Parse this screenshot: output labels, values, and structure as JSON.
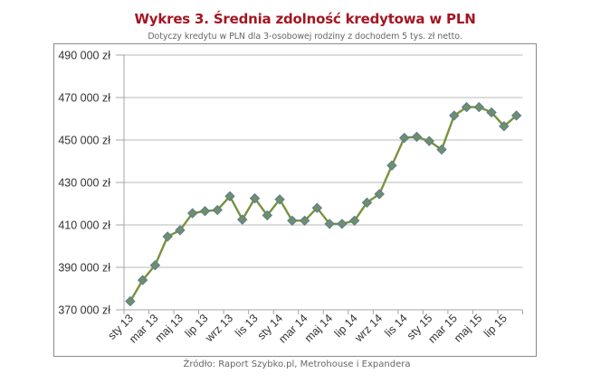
{
  "header": {
    "title": "Wykres 3. Średnia zdolność kredytowa w PLN",
    "subtitle": "Dotyczy kredytu w PLN dla 3-osobowej rodziny z dochodem 5 tys. zł netto."
  },
  "footer": {
    "source": "Źródło: Raport Szybko.pl, Metrohouse i Expandera"
  },
  "colors": {
    "title": "#a31621",
    "line": "#77933c",
    "marker_fill": "#6f8f6a",
    "marker_stroke": "#5b7a93",
    "grid": "#c8c8c8",
    "axis": "#a6a6a6"
  },
  "chart_data": {
    "type": "line",
    "title": "Wykres 3. Średnia zdolność kredytowa w PLN",
    "subtitle": "Dotyczy kredytu w PLN dla 3-osobowej rodziny z dochodem 5 tys. zł netto.",
    "xlabel": "",
    "ylabel": "",
    "ylim": [
      370000,
      490000
    ],
    "y_ticks": [
      370000,
      390000,
      410000,
      430000,
      450000,
      470000,
      490000
    ],
    "y_tick_labels": [
      "370 000 zł",
      "390 000 zł",
      "410 000 zł",
      "430 000 zł",
      "450 000 zł",
      "470 000 zł",
      "490 000 zł"
    ],
    "x_tick_labels": [
      "sty 13",
      "mar 13",
      "maj 13",
      "lip 13",
      "wrz 13",
      "lis 13",
      "sty 14",
      "mar 14",
      "maj 14",
      "lip 14",
      "wrz 14",
      "lis 14",
      "sty 15",
      "mar 15",
      "maj 15",
      "lip 15"
    ],
    "grid": true,
    "legend": "none",
    "categories": [
      "sty 13",
      "lut 13",
      "mar 13",
      "kwi 13",
      "maj 13",
      "cze 13",
      "lip 13",
      "sie 13",
      "wrz 13",
      "paź 13",
      "lis 13",
      "gru 13",
      "sty 14",
      "lut 14",
      "mar 14",
      "kwi 14",
      "maj 14",
      "cze 14",
      "lip 14",
      "sie 14",
      "wrz 14",
      "paź 14",
      "lis 14",
      "gru 14",
      "sty 15",
      "lut 15",
      "mar 15",
      "kwi 15",
      "maj 15",
      "cze 15",
      "lip 15",
      "sie 15"
    ],
    "series": [
      {
        "name": "Średnia zdolność kredytowa",
        "values": [
          374000,
          384000,
          391000,
          404500,
          407500,
          415500,
          416500,
          417000,
          423500,
          412500,
          422500,
          414500,
          422000,
          412000,
          412000,
          418000,
          410500,
          410500,
          412000,
          420500,
          424500,
          438000,
          451000,
          451500,
          449500,
          445500,
          461500,
          465500,
          465500,
          463000,
          456500,
          461500
        ]
      }
    ]
  }
}
